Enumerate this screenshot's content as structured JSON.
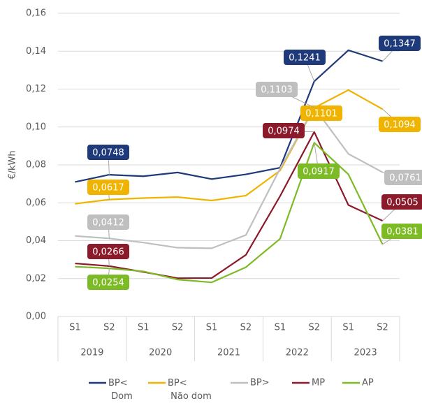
{
  "chart_data": {
    "type": "line",
    "y_label": "€/kWh",
    "categories": [
      "S1",
      "S2",
      "S1",
      "S2",
      "S1",
      "S2",
      "S1",
      "S2",
      "S1",
      "S2"
    ],
    "category_groups": [
      "2019",
      "2020",
      "2021",
      "2022",
      "2023"
    ],
    "ylim": [
      0,
      0.16
    ],
    "yticks": [
      {
        "value": 0,
        "label": "0,00"
      },
      {
        "value": 0.02,
        "label": "0,02"
      },
      {
        "value": 0.04,
        "label": "0,04"
      },
      {
        "value": 0.06,
        "label": "0,06"
      },
      {
        "value": 0.08,
        "label": "0,08"
      },
      {
        "value": 0.1,
        "label": "0,10"
      },
      {
        "value": 0.12,
        "label": "0,12"
      },
      {
        "value": 0.14,
        "label": "0,14"
      },
      {
        "value": 0.16,
        "label": "0,16"
      }
    ],
    "grid": true,
    "legend": "bottom",
    "series": [
      {
        "name": "BP< Dom",
        "color": "#1f3a7a",
        "values": [
          0.071,
          0.0748,
          0.074,
          0.076,
          0.0725,
          0.075,
          0.0785,
          0.1241,
          0.1405,
          0.1347
        ],
        "value_labels": [
          null,
          "0,0748",
          null,
          null,
          null,
          null,
          null,
          "0,1241",
          null,
          "0,1347"
        ]
      },
      {
        "name": "BP< Não dom",
        "color": "#f0b400",
        "values": [
          0.0595,
          0.0617,
          0.0625,
          0.063,
          0.0612,
          0.0638,
          0.077,
          0.1101,
          0.1195,
          0.1094
        ],
        "value_labels": [
          null,
          "0,0617",
          null,
          null,
          null,
          null,
          null,
          "0,1101",
          null,
          "0,1094"
        ]
      },
      {
        "name": "BP>",
        "color": "#bfbfbf",
        "values": [
          0.0425,
          0.0412,
          0.039,
          0.0363,
          0.036,
          0.043,
          0.078,
          0.1103,
          0.0858,
          0.0761
        ],
        "value_labels": [
          null,
          "0,0412",
          null,
          null,
          null,
          null,
          null,
          "0,1103",
          null,
          "0,0761"
        ]
      },
      {
        "name": "MP",
        "color": "#8b1a2b",
        "values": [
          0.028,
          0.0266,
          0.0235,
          0.0202,
          0.0203,
          0.0325,
          0.0635,
          0.0974,
          0.0588,
          0.0505
        ],
        "value_labels": [
          null,
          "0,0266",
          null,
          null,
          null,
          null,
          null,
          "0,0974",
          null,
          "0,0505"
        ]
      },
      {
        "name": "AP",
        "color": "#7cbb26",
        "values": [
          0.0263,
          0.0254,
          0.0238,
          0.0195,
          0.018,
          0.026,
          0.041,
          0.0917,
          0.075,
          0.0381
        ],
        "value_labels": [
          null,
          "0,0254",
          null,
          null,
          null,
          null,
          null,
          "0,0917",
          null,
          "0,0381"
        ]
      }
    ]
  }
}
